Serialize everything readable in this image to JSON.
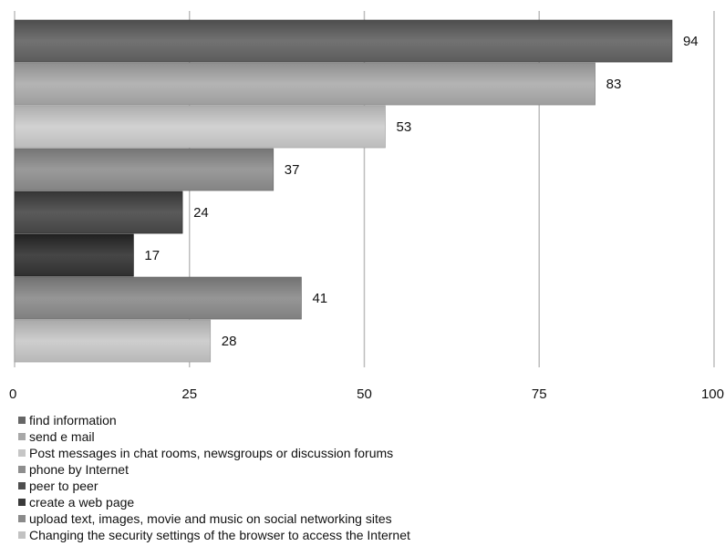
{
  "chart_data": {
    "type": "bar",
    "orientation": "horizontal",
    "categories": [
      "find information",
      "send e mail",
      "Post messages in chat rooms, newsgroups or discussion forums",
      "phone by Internet",
      "peer to peer",
      "create a web page",
      "upload text, images, movie and music on social networking sites",
      "Changing the security settings of the browser to access the Internet"
    ],
    "values": [
      94,
      83,
      53,
      37,
      24,
      17,
      41,
      28
    ],
    "colors": [
      "#666666",
      "#a8a8a8",
      "#c6c6c6",
      "#8e8e8e",
      "#4e4e4e",
      "#3a3a3a",
      "#8a8a8a",
      "#c2c2c2"
    ],
    "xlim": [
      0,
      100
    ],
    "xticks": [
      "0",
      "25",
      "50",
      "75",
      "100"
    ],
    "grid": true,
    "legend_position": "bottom",
    "title": "",
    "xlabel": "",
    "ylabel": ""
  }
}
